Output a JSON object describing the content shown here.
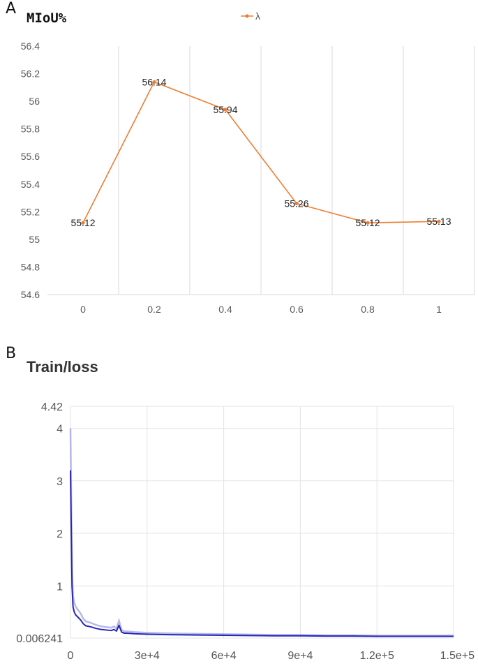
{
  "panels": {
    "a": "A",
    "b": "B"
  },
  "chart_data": [
    {
      "type": "line",
      "title": "MIoU%",
      "legend": "top",
      "grid": "vertical",
      "categories": [
        "0",
        "0.2",
        "0.4",
        "0.6",
        "0.8",
        "1"
      ],
      "series": [
        {
          "name": "λ",
          "values": [
            55.12,
            56.14,
            55.94,
            55.26,
            55.12,
            55.13
          ],
          "color": "#ED7D31"
        }
      ],
      "data_labels": [
        "55.12",
        "56.14",
        "55.94",
        "55.26",
        "55.12",
        "55.13"
      ],
      "y_ticks": [
        "54.6",
        "54.8",
        "55",
        "55.2",
        "55.4",
        "55.6",
        "55.8",
        "56",
        "56.2",
        "56.4"
      ],
      "ylim": [
        54.6,
        56.4
      ],
      "xlabel": "",
      "ylabel": ""
    },
    {
      "type": "line",
      "title": "Train/loss",
      "grid": "both",
      "xlim": [
        0,
        150000
      ],
      "ylim": [
        0.006241,
        4.42
      ],
      "x_ticks": [
        {
          "value": 0,
          "label": "0"
        },
        {
          "value": 30000,
          "label": "3e+4"
        },
        {
          "value": 60000,
          "label": "6e+4"
        },
        {
          "value": 90000,
          "label": "9e+4"
        },
        {
          "value": 120000,
          "label": "1.2e+5"
        },
        {
          "value": 150000,
          "label": "1.5e+5"
        }
      ],
      "y_ticks": [
        {
          "value": 0.006241,
          "label": "0.006241"
        },
        {
          "value": 1,
          "label": "1"
        },
        {
          "value": 2,
          "label": "2"
        },
        {
          "value": 3,
          "label": "3"
        },
        {
          "value": 4,
          "label": "4"
        },
        {
          "value": 4.42,
          "label": "4.42"
        }
      ],
      "series": [
        {
          "name": "",
          "color": "#2626b8",
          "x": [
            0,
            300,
            600,
            1000,
            1500,
            2000,
            3000,
            4000,
            5000,
            6000,
            8000,
            10000,
            12000,
            14000,
            16000,
            17000,
            18000,
            19000,
            20000,
            21000,
            22000,
            25000,
            30000,
            40000,
            50000,
            60000,
            70000,
            80000,
            90000,
            100000,
            110000,
            120000,
            130000,
            140000,
            150000
          ],
          "values": [
            3.2,
            2.1,
            1.0,
            0.6,
            0.5,
            0.45,
            0.4,
            0.35,
            0.28,
            0.24,
            0.22,
            0.19,
            0.17,
            0.16,
            0.15,
            0.17,
            0.14,
            0.25,
            0.12,
            0.1,
            0.1,
            0.09,
            0.08,
            0.07,
            0.065,
            0.06,
            0.055,
            0.05,
            0.05,
            0.045,
            0.045,
            0.04,
            0.04,
            0.04,
            0.04
          ]
        }
      ]
    }
  ]
}
